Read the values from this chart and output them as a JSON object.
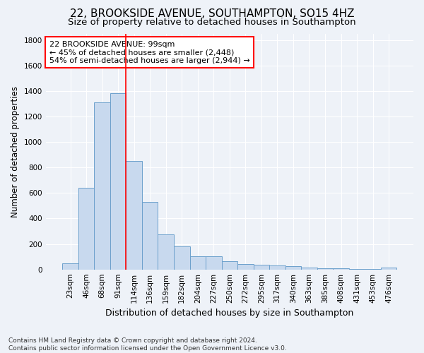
{
  "title": "22, BROOKSIDE AVENUE, SOUTHAMPTON, SO15 4HZ",
  "subtitle": "Size of property relative to detached houses in Southampton",
  "xlabel": "Distribution of detached houses by size in Southampton",
  "ylabel": "Number of detached properties",
  "categories": [
    "23sqm",
    "46sqm",
    "68sqm",
    "91sqm",
    "114sqm",
    "136sqm",
    "159sqm",
    "182sqm",
    "204sqm",
    "227sqm",
    "250sqm",
    "272sqm",
    "295sqm",
    "317sqm",
    "340sqm",
    "363sqm",
    "385sqm",
    "408sqm",
    "431sqm",
    "453sqm",
    "476sqm"
  ],
  "values": [
    50,
    640,
    1310,
    1380,
    850,
    530,
    275,
    180,
    105,
    105,
    65,
    40,
    35,
    30,
    25,
    15,
    10,
    8,
    5,
    5,
    15
  ],
  "bar_color": "#c8d9ee",
  "bar_edge_color": "#6ca0cc",
  "vline_x_index": 3.5,
  "vline_color": "red",
  "annotation_text": "22 BROOKSIDE AVENUE: 99sqm\n← 45% of detached houses are smaller (2,448)\n54% of semi-detached houses are larger (2,944) →",
  "annotation_box_color": "white",
  "annotation_box_edge_color": "red",
  "ylim": [
    0,
    1850
  ],
  "yticks": [
    0,
    200,
    400,
    600,
    800,
    1000,
    1200,
    1400,
    1600,
    1800
  ],
  "footnote": "Contains HM Land Registry data © Crown copyright and database right 2024.\nContains public sector information licensed under the Open Government Licence v3.0.",
  "background_color": "#eef2f8",
  "grid_color": "#ffffff",
  "title_fontsize": 11,
  "subtitle_fontsize": 9.5,
  "xlabel_fontsize": 9,
  "ylabel_fontsize": 8.5,
  "tick_fontsize": 7.5,
  "annotation_fontsize": 8,
  "footnote_fontsize": 6.5
}
